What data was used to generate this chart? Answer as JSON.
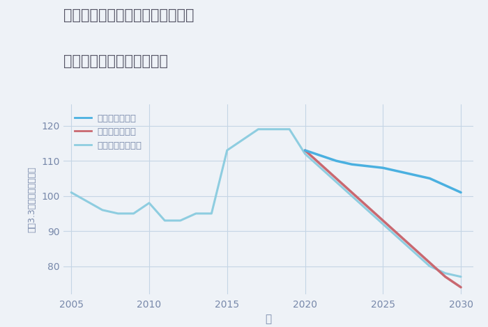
{
  "title_line1": "愛知県稲沢市祖父江町西鵜之本の",
  "title_line2": "中古マンションの価格推移",
  "xlabel": "年",
  "ylabel": "平（3.3㎡）単価（万円）",
  "background_color": "#eef2f7",
  "plot_bg_color": "#eef2f7",
  "grid_color": "#c5d5e5",
  "title_color": "#555566",
  "axis_color": "#7788aa",
  "ylim": [
    72,
    126
  ],
  "xlim": [
    2004.5,
    2030.8
  ],
  "yticks": [
    80,
    90,
    100,
    110,
    120
  ],
  "xticks": [
    2005,
    2010,
    2015,
    2020,
    2025,
    2030
  ],
  "good_scenario": {
    "label": "グッドシナリオ",
    "color": "#4ab0e0",
    "linewidth": 2.5,
    "x": [
      2020,
      2021,
      2022,
      2023,
      2024,
      2025,
      2026,
      2027,
      2028,
      2029,
      2030
    ],
    "y": [
      113,
      111.5,
      110,
      109,
      108.5,
      108,
      107,
      106,
      105,
      103,
      101
    ]
  },
  "bad_scenario": {
    "label": "バッドシナリオ",
    "color": "#c96870",
    "linewidth": 2.5,
    "x": [
      2020,
      2021,
      2022,
      2023,
      2024,
      2025,
      2026,
      2027,
      2028,
      2029,
      2030
    ],
    "y": [
      113,
      109,
      105,
      101,
      97,
      93,
      89,
      85,
      81,
      77,
      74
    ]
  },
  "normal_scenario": {
    "label": "ノーマルシナリオ",
    "color": "#8ecde0",
    "linewidth": 2.2,
    "x": [
      2005,
      2007,
      2008,
      2009,
      2010,
      2011,
      2012,
      2013,
      2014,
      2015,
      2016,
      2017,
      2018,
      2019,
      2020,
      2021,
      2022,
      2023,
      2024,
      2025,
      2026,
      2027,
      2028,
      2029,
      2030
    ],
    "y": [
      101,
      96,
      95,
      95,
      98,
      93,
      93,
      95,
      95,
      113,
      116,
      119,
      119,
      119,
      112,
      108,
      104,
      100,
      96,
      92,
      88,
      84,
      80,
      78,
      77
    ]
  }
}
